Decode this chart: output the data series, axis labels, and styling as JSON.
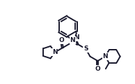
{
  "bg_color": "#ffffff",
  "line_color": "#1a1a2e",
  "bond_lw": 1.4,
  "figsize": [
    1.94,
    1.2
  ],
  "dpi": 100,
  "xlim": [
    -2.5,
    8.5
  ],
  "ylim": [
    -3.5,
    4.5
  ]
}
